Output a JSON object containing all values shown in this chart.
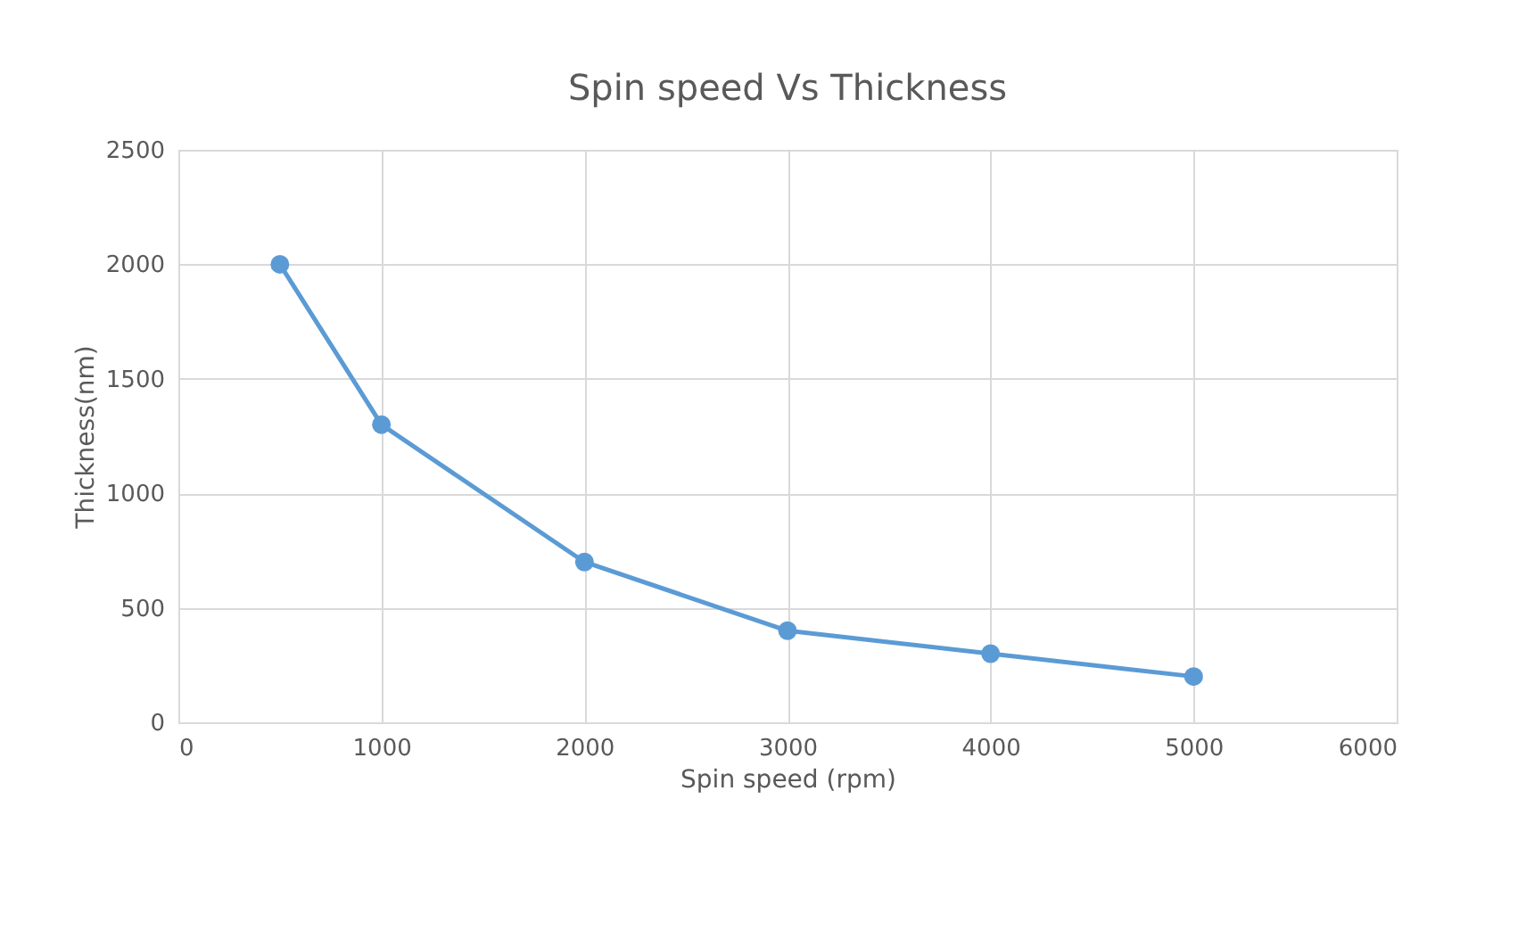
{
  "chart_data": {
    "type": "line",
    "title": "Spin speed Vs Thickness",
    "xlabel": "Spin speed (rpm)",
    "ylabel": "Thickness(nm)",
    "x": [
      500,
      1000,
      2000,
      3000,
      4000,
      5000
    ],
    "series": [
      {
        "color": "#5b9bd5",
        "values": [
          2000,
          1300,
          700,
          400,
          300,
          200
        ]
      }
    ],
    "xlim": [
      0,
      6000
    ],
    "xticks": [
      0,
      1000,
      2000,
      3000,
      4000,
      5000,
      6000
    ],
    "ylim": [
      0,
      2500
    ],
    "yticks": [
      0,
      500,
      1000,
      1500,
      2000,
      2500
    ],
    "grid": true,
    "marker": "circle",
    "line_style": "solid"
  }
}
